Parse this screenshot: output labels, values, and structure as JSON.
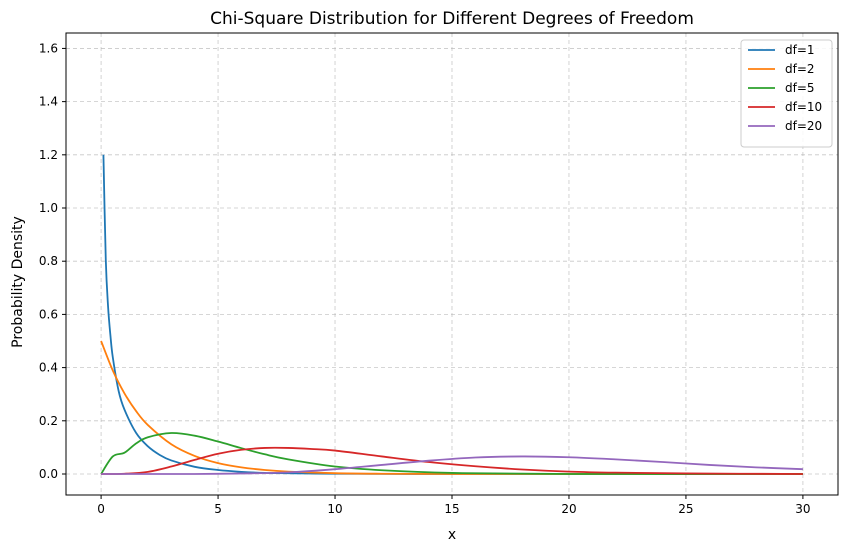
{
  "chart_data": {
    "type": "line",
    "title": "Chi-Square Distribution for Different Degrees of Freedom",
    "xlabel": "x",
    "ylabel": "Probability Density",
    "xlim": [
      -1.5,
      31.5
    ],
    "ylim": [
      -0.079,
      1.658
    ],
    "xticks": [
      0,
      5,
      10,
      15,
      20,
      25,
      30
    ],
    "yticks": [
      0.0,
      0.2,
      0.4,
      0.6,
      0.8,
      1.0,
      1.2,
      1.4,
      1.6
    ],
    "grid": true,
    "legend_position": "top-right",
    "series": [
      {
        "name": "df=1",
        "color": "#1f77b4",
        "values": [
          [
            0.1,
            1.2
          ],
          [
            0.2,
            0.807
          ],
          [
            0.3,
            0.627
          ],
          [
            0.4,
            0.52
          ],
          [
            0.5,
            0.439
          ],
          [
            0.75,
            0.312
          ],
          [
            1.0,
            0.242
          ],
          [
            1.5,
            0.154
          ],
          [
            2.0,
            0.104
          ],
          [
            2.5,
            0.072
          ],
          [
            3.0,
            0.051
          ],
          [
            4.0,
            0.027
          ],
          [
            5.0,
            0.015
          ],
          [
            6.0,
            0.008
          ],
          [
            7.0,
            0.004
          ],
          [
            8.0,
            0.003
          ],
          [
            10.0,
            0.001
          ],
          [
            15.0,
            0.0
          ],
          [
            20.0,
            0.0
          ],
          [
            30.0,
            0.0
          ]
        ]
      },
      {
        "name": "df=2",
        "color": "#ff7f0e",
        "values": [
          [
            0.0,
            0.5
          ],
          [
            0.5,
            0.389
          ],
          [
            1.0,
            0.303
          ],
          [
            1.5,
            0.236
          ],
          [
            2.0,
            0.184
          ],
          [
            3.0,
            0.112
          ],
          [
            4.0,
            0.068
          ],
          [
            5.0,
            0.041
          ],
          [
            6.0,
            0.025
          ],
          [
            7.0,
            0.015
          ],
          [
            8.0,
            0.009
          ],
          [
            10.0,
            0.003
          ],
          [
            12.0,
            0.001
          ],
          [
            15.0,
            0.0
          ],
          [
            20.0,
            0.0
          ],
          [
            30.0,
            0.0
          ]
        ]
      },
      {
        "name": "df=5",
        "color": "#2ca02c",
        "values": [
          [
            0.0,
            0.0
          ],
          [
            0.5,
            0.066
          ],
          [
            1.0,
            0.08
          ],
          [
            1.5,
            0.115
          ],
          [
            2.0,
            0.138
          ],
          [
            3.0,
            0.154
          ],
          [
            4.0,
            0.144
          ],
          [
            5.0,
            0.122
          ],
          [
            6.0,
            0.097
          ],
          [
            7.0,
            0.074
          ],
          [
            8.0,
            0.055
          ],
          [
            10.0,
            0.028
          ],
          [
            12.0,
            0.014
          ],
          [
            15.0,
            0.004
          ],
          [
            20.0,
            0.0
          ],
          [
            30.0,
            0.0
          ]
        ]
      },
      {
        "name": "df=10",
        "color": "#d62728",
        "values": [
          [
            0.0,
            0.0
          ],
          [
            1.0,
            0.001
          ],
          [
            2.0,
            0.008
          ],
          [
            3.0,
            0.028
          ],
          [
            4.0,
            0.053
          ],
          [
            5.0,
            0.076
          ],
          [
            6.0,
            0.091
          ],
          [
            7.0,
            0.098
          ],
          [
            8.0,
            0.098
          ],
          [
            9.0,
            0.094
          ],
          [
            10.0,
            0.088
          ],
          [
            12.0,
            0.066
          ],
          [
            14.0,
            0.045
          ],
          [
            16.0,
            0.029
          ],
          [
            18.0,
            0.017
          ],
          [
            20.0,
            0.009
          ],
          [
            22.0,
            0.005
          ],
          [
            25.0,
            0.002
          ],
          [
            30.0,
            0.0
          ]
        ]
      },
      {
        "name": "df=20",
        "color": "#9467bd",
        "values": [
          [
            0.0,
            0.0
          ],
          [
            4.0,
            0.0
          ],
          [
            6.0,
            0.002
          ],
          [
            8.0,
            0.006
          ],
          [
            10.0,
            0.018
          ],
          [
            12.0,
            0.034
          ],
          [
            14.0,
            0.05
          ],
          [
            16.0,
            0.062
          ],
          [
            18.0,
            0.066
          ],
          [
            20.0,
            0.063
          ],
          [
            22.0,
            0.055
          ],
          [
            24.0,
            0.045
          ],
          [
            26.0,
            0.034
          ],
          [
            28.0,
            0.025
          ],
          [
            30.0,
            0.018
          ]
        ]
      }
    ]
  }
}
